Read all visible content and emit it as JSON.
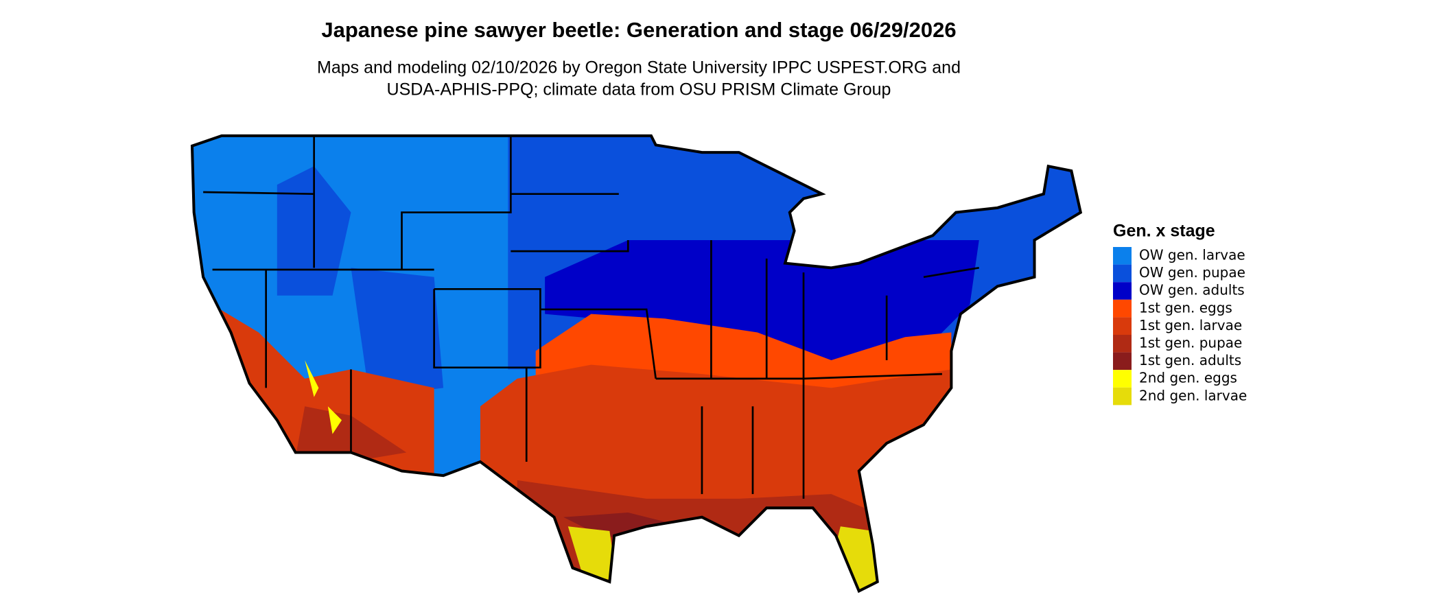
{
  "title": "Japanese pine sawyer beetle: Generation and stage 06/29/2026",
  "subtitle": [
    "Maps and modeling 02/10/2026 by Oregon State University IPPC USPEST.ORG and",
    "USDA-APHIS-PPQ; climate data from OSU PRISM Climate Group"
  ],
  "legend": {
    "title": "Gen. x stage",
    "items": [
      {
        "label": "OW gen. larvae",
        "color": "#0b80ec"
      },
      {
        "label": "OW gen. pupae",
        "color": "#0a50dc"
      },
      {
        "label": "OW gen. adults",
        "color": "#0000c8"
      },
      {
        "label": "1st gen. eggs",
        "color": "#ff4800"
      },
      {
        "label": "1st gen. larvae",
        "color": "#d93a0c"
      },
      {
        "label": "1st gen. pupae",
        "color": "#b02a14"
      },
      {
        "label": "1st gen. adults",
        "color": "#8a1c1c"
      },
      {
        "label": "2nd gen. eggs",
        "color": "#ffff00"
      },
      {
        "label": "2nd gen. larvae",
        "color": "#e6dc0a"
      }
    ]
  }
}
